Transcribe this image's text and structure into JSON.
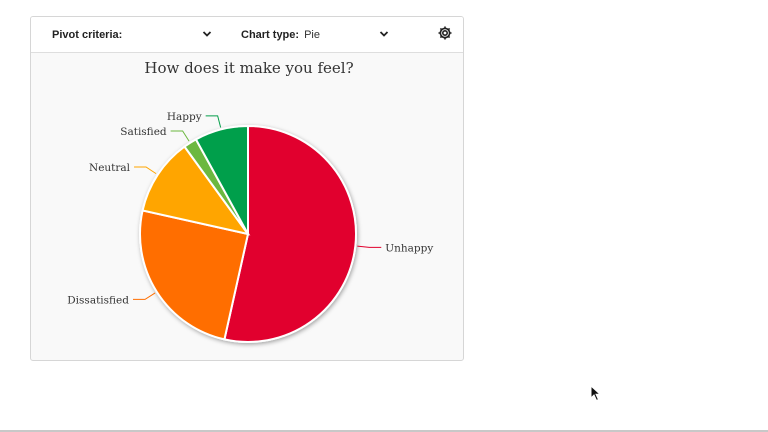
{
  "toolbar": {
    "pivot_label": "Pivot criteria:",
    "pivot_value": "",
    "charttype_label": "Chart type:",
    "charttype_value": "Pie",
    "icons": {
      "dropdown": "chevron-down-icon",
      "settings": "gear-icon"
    }
  },
  "chart_data": {
    "type": "pie",
    "title": "How does it make you feel?",
    "categories": [
      "Unhappy",
      "Dissatisfied",
      "Neutral",
      "Satisfied",
      "Happy"
    ],
    "values": [
      53.5,
      25,
      11.5,
      2,
      8
    ],
    "colors": [
      "#e1002d",
      "#ff6e00",
      "#ffa500",
      "#6cb83f",
      "#069f4b"
    ],
    "start_angle_deg": 0,
    "direction": "clockwise"
  }
}
